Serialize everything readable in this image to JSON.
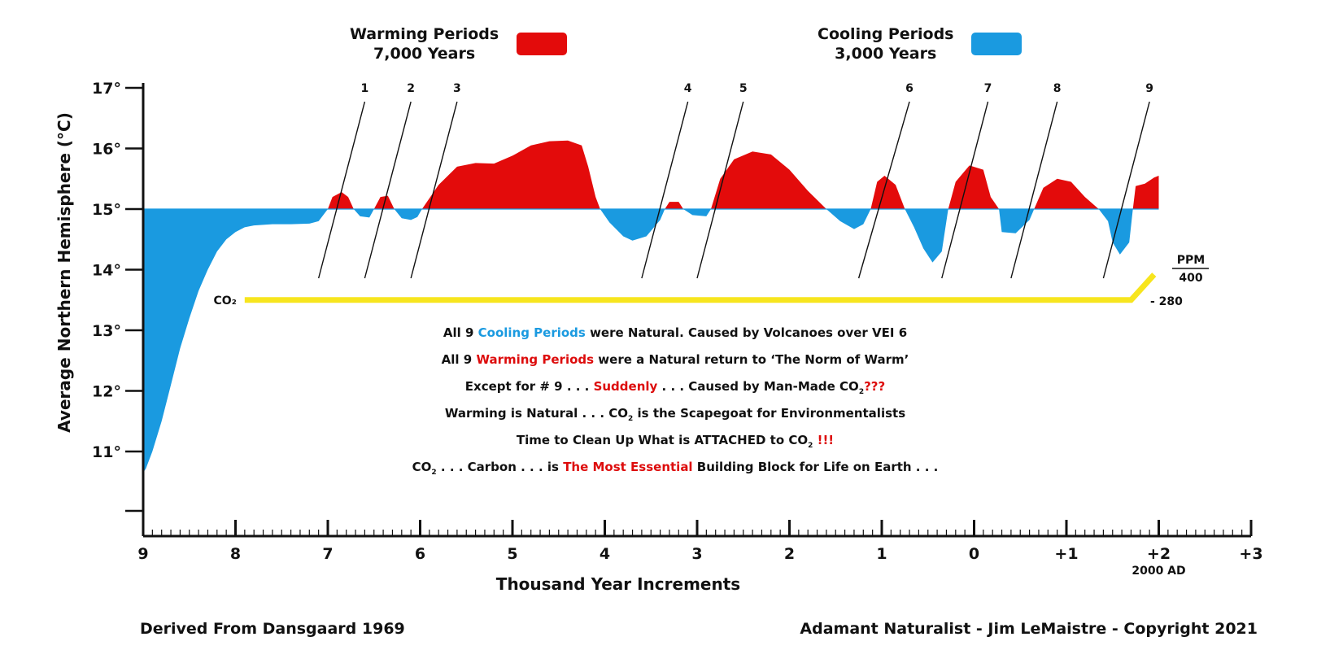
{
  "legend": {
    "warming_line1": "Warming Periods",
    "warming_line2": "7,000 Years",
    "cooling_line1": "Cooling Periods",
    "cooling_line2": "3,000 Years",
    "warming_color": "#e30b0b",
    "cooling_color": "#1a9ae0"
  },
  "chart_data": {
    "type": "area",
    "xlabel": "Thousand Year Increments",
    "ylabel": "Average Northern Hemisphere (°C)",
    "x_ticks": [
      "9",
      "8",
      "7",
      "6",
      "5",
      "4",
      "3",
      "2",
      "1",
      "0",
      "+1",
      "+2",
      "+3"
    ],
    "x_tick_values": [
      -9,
      -8,
      -7,
      -6,
      -5,
      -4,
      -3,
      -2,
      -1,
      0,
      1,
      2,
      3
    ],
    "x_note": "2000 AD",
    "xlim": [
      -9,
      3
    ],
    "y_ticks": [
      "17°",
      "16°",
      "15°",
      "14°",
      "13°",
      "12°",
      "11°"
    ],
    "y_tick_values": [
      17,
      16,
      15,
      14,
      13,
      12,
      11
    ],
    "ylim": [
      9.7,
      17
    ],
    "baseline": 15,
    "series": [
      {
        "values": [
          [
            -9.0,
            10.65
          ],
          [
            -8.97,
            10.72
          ],
          [
            -8.9,
            11.0
          ],
          [
            -8.8,
            11.5
          ],
          [
            -8.7,
            12.1
          ],
          [
            -8.6,
            12.7
          ],
          [
            -8.5,
            13.2
          ],
          [
            -8.4,
            13.65
          ],
          [
            -8.3,
            14.0
          ],
          [
            -8.2,
            14.3
          ],
          [
            -8.1,
            14.5
          ],
          [
            -8.0,
            14.62
          ],
          [
            -7.9,
            14.7
          ],
          [
            -7.8,
            14.73
          ],
          [
            -7.6,
            14.75
          ],
          [
            -7.4,
            14.75
          ],
          [
            -7.2,
            14.76
          ],
          [
            -7.1,
            14.8
          ],
          [
            -7.0,
            15.0
          ],
          [
            -6.95,
            15.2
          ],
          [
            -6.85,
            15.28
          ],
          [
            -6.78,
            15.2
          ],
          [
            -6.72,
            15.0
          ],
          [
            -6.65,
            14.88
          ],
          [
            -6.55,
            14.86
          ],
          [
            -6.5,
            15.0
          ],
          [
            -6.43,
            15.2
          ],
          [
            -6.35,
            15.22
          ],
          [
            -6.28,
            15.0
          ],
          [
            -6.2,
            14.85
          ],
          [
            -6.1,
            14.82
          ],
          [
            -6.03,
            14.87
          ],
          [
            -5.98,
            15.0
          ],
          [
            -5.8,
            15.4
          ],
          [
            -5.6,
            15.7
          ],
          [
            -5.4,
            15.76
          ],
          [
            -5.2,
            15.75
          ],
          [
            -5.0,
            15.88
          ],
          [
            -4.8,
            16.05
          ],
          [
            -4.6,
            16.12
          ],
          [
            -4.4,
            16.13
          ],
          [
            -4.25,
            16.05
          ],
          [
            -4.18,
            15.7
          ],
          [
            -4.1,
            15.2
          ],
          [
            -4.05,
            15.0
          ],
          [
            -3.95,
            14.78
          ],
          [
            -3.8,
            14.55
          ],
          [
            -3.7,
            14.48
          ],
          [
            -3.55,
            14.55
          ],
          [
            -3.4,
            14.82
          ],
          [
            -3.35,
            15.0
          ],
          [
            -3.3,
            15.12
          ],
          [
            -3.2,
            15.12
          ],
          [
            -3.15,
            15.0
          ],
          [
            -3.05,
            14.9
          ],
          [
            -2.9,
            14.88
          ],
          [
            -2.85,
            15.0
          ],
          [
            -2.75,
            15.5
          ],
          [
            -2.6,
            15.82
          ],
          [
            -2.4,
            15.95
          ],
          [
            -2.2,
            15.9
          ],
          [
            -2.0,
            15.65
          ],
          [
            -1.8,
            15.3
          ],
          [
            -1.6,
            15.0
          ],
          [
            -1.45,
            14.8
          ],
          [
            -1.3,
            14.67
          ],
          [
            -1.2,
            14.75
          ],
          [
            -1.12,
            15.0
          ],
          [
            -1.05,
            15.45
          ],
          [
            -0.97,
            15.55
          ],
          [
            -0.85,
            15.4
          ],
          [
            -0.75,
            15.0
          ],
          [
            -0.65,
            14.7
          ],
          [
            -0.55,
            14.35
          ],
          [
            -0.45,
            14.12
          ],
          [
            -0.35,
            14.3
          ],
          [
            -0.28,
            15.0
          ],
          [
            -0.2,
            15.45
          ],
          [
            -0.05,
            15.72
          ],
          [
            0.1,
            15.65
          ],
          [
            0.18,
            15.2
          ],
          [
            0.27,
            15.0
          ],
          [
            0.3,
            14.62
          ],
          [
            0.45,
            14.6
          ],
          [
            0.6,
            14.82
          ],
          [
            0.65,
            15.0
          ],
          [
            0.75,
            15.35
          ],
          [
            0.9,
            15.5
          ],
          [
            1.05,
            15.45
          ],
          [
            1.2,
            15.2
          ],
          [
            1.35,
            15.0
          ],
          [
            1.45,
            14.8
          ],
          [
            1.5,
            14.45
          ],
          [
            1.58,
            14.25
          ],
          [
            1.68,
            14.45
          ],
          [
            1.72,
            15.0
          ],
          [
            1.75,
            15.38
          ],
          [
            1.85,
            15.42
          ],
          [
            1.95,
            15.52
          ],
          [
            2.0,
            15.55
          ],
          [
            2.0,
            15.0
          ]
        ]
      },
      {
        "name": "CO₂",
        "values": [
          [
            -7.9,
            13.5
          ],
          [
            1.7,
            13.5
          ],
          [
            1.95,
            13.92
          ]
        ]
      }
    ],
    "co2_labels": {
      "series_label": "CO₂",
      "ppm_label": "PPM",
      "ppm_top": "400",
      "ppm_base": "- 280"
    },
    "markers": [
      {
        "label": "1",
        "top_x": -6.6,
        "bottom_x": -7.1
      },
      {
        "label": "2",
        "top_x": -6.1,
        "bottom_x": -6.6
      },
      {
        "label": "3",
        "top_x": -5.6,
        "bottom_x": -6.1
      },
      {
        "label": "4",
        "top_x": -3.1,
        "bottom_x": -3.6
      },
      {
        "label": "5",
        "top_x": -2.5,
        "bottom_x": -3.0
      },
      {
        "label": "6",
        "top_x": -0.7,
        "bottom_x": -1.25
      },
      {
        "label": "7",
        "top_x": 0.15,
        "bottom_x": -0.35
      },
      {
        "label": "8",
        "top_x": 0.9,
        "bottom_x": 0.4
      },
      {
        "label": "9",
        "top_x": 1.9,
        "bottom_x": 1.4
      }
    ]
  },
  "annotations": {
    "line1_a": "All 9 ",
    "line1_b": "Cooling Periods",
    "line1_c": " were Natural. Caused by Volcanoes over VEI 6",
    "line2_a": "All 9 ",
    "line2_b": "Warming Periods",
    "line2_c": " were a Natural return to ‘The Norm of Warm’",
    "line3_a": "Except for # 9 . . . ",
    "line3_b": "Suddenly",
    "line3_c": " . . . Caused by Man-Made CO",
    "line3_sub": "2",
    "line3_d": "???",
    "line4_a": "Warming is Natural . . . CO",
    "line4_sub": "2",
    "line4_b": " is the Scapegoat for Environmentalists",
    "line5_a": "Time to Clean Up What is ATTACHED to CO",
    "line5_sub": "2",
    "line5_b": " !!!",
    "line6_a": "CO",
    "line6_sub": "2",
    "line6_b": " . . . Carbon . . . is ",
    "line6_c": "The Most Essential",
    "line6_d": " Building Block for Life on Earth . . ."
  },
  "footer": {
    "left": "Derived From Dansgaard 1969",
    "right": "Adamant Naturalist - Jim LeMaistre - Copyright 2021"
  },
  "colors": {
    "warm": "#e30b0b",
    "cool": "#1a9ae0",
    "co2_line": "#f7e51e"
  }
}
